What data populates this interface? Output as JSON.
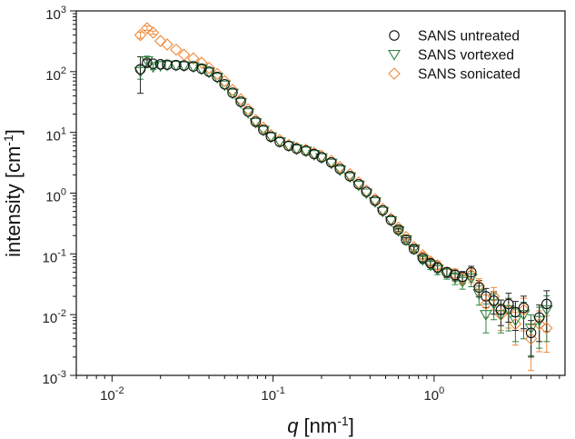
{
  "chart_data": {
    "type": "scatter",
    "xscale": "log",
    "yscale": "log",
    "xlim": [
      0.006,
      6.5
    ],
    "ylim": [
      0.001,
      1000
    ],
    "x_ticks": [
      {
        "value": 0.01,
        "base": "10",
        "exp": "-2"
      },
      {
        "value": 0.1,
        "base": "10",
        "exp": "-1"
      },
      {
        "value": 1,
        "base": "10",
        "exp": "0"
      }
    ],
    "y_ticks": [
      {
        "value": 0.001,
        "base": "10",
        "exp": "-3"
      },
      {
        "value": 0.01,
        "base": "10",
        "exp": "-2"
      },
      {
        "value": 0.1,
        "base": "10",
        "exp": "-1"
      },
      {
        "value": 1,
        "base": "10",
        "exp": "0"
      },
      {
        "value": 10,
        "base": "10",
        "exp": "1"
      },
      {
        "value": 100,
        "base": "10",
        "exp": "2"
      },
      {
        "value": 1000,
        "base": "10",
        "exp": "3"
      }
    ],
    "xlabel": {
      "italic": "q",
      "rest": " [nm",
      "sup": "-1",
      "tail": "]"
    },
    "ylabel": {
      "text": "intensity [cm",
      "sup": "-1",
      "tail": "]"
    },
    "legend_position": "top-right",
    "grid": false,
    "x": [
      0.015,
      0.0165,
      0.018,
      0.02,
      0.022,
      0.025,
      0.028,
      0.032,
      0.036,
      0.04,
      0.045,
      0.05,
      0.056,
      0.063,
      0.07,
      0.078,
      0.087,
      0.097,
      0.11,
      0.125,
      0.14,
      0.16,
      0.18,
      0.2,
      0.23,
      0.26,
      0.3,
      0.34,
      0.38,
      0.43,
      0.48,
      0.54,
      0.6,
      0.67,
      0.75,
      0.85,
      0.95,
      1.05,
      1.2,
      1.35,
      1.5,
      1.7,
      1.9,
      2.1,
      2.35,
      2.6,
      2.9,
      3.2,
      3.6,
      4.0,
      4.5,
      5.0
    ],
    "series": [
      {
        "name": "SANS untreated",
        "marker": "circle",
        "color": "#111111",
        "errcolor": "#222222",
        "values": [
          110,
          140,
          135,
          132,
          130,
          128,
          126,
          122,
          112,
          100,
          82,
          62,
          45,
          32,
          22,
          15,
          11,
          8.5,
          7,
          6,
          5.4,
          5,
          4.4,
          3.9,
          3.2,
          2.5,
          1.9,
          1.4,
          1.05,
          0.75,
          0.52,
          0.36,
          0.25,
          0.17,
          0.12,
          0.085,
          0.07,
          0.06,
          0.05,
          0.045,
          0.042,
          0.05,
          0.028,
          0.02,
          0.017,
          0.012,
          0.015,
          0.011,
          0.013,
          0.005,
          0.009,
          0.015
        ],
        "err": [
          0.6,
          0.12,
          0.05,
          0.03,
          0.02,
          0.015,
          0.012,
          0.01,
          0.01,
          0.01,
          0.01,
          0.01,
          0.01,
          0.01,
          0.01,
          0.01,
          0.01,
          0.01,
          0.01,
          0.01,
          0.01,
          0.01,
          0.01,
          0.01,
          0.01,
          0.01,
          0.01,
          0.01,
          0.02,
          0.02,
          0.03,
          0.05,
          0.06,
          0.08,
          0.1,
          0.12,
          0.14,
          0.16,
          0.18,
          0.2,
          0.22,
          0.25,
          0.3,
          0.35,
          0.4,
          0.45,
          0.5,
          0.5,
          0.55,
          0.6,
          0.6,
          0.65
        ]
      },
      {
        "name": "SANS vortexed",
        "marker": "triangle-down",
        "color": "#2e8540",
        "errcolor": "#2e8540",
        "values": [
          100,
          150,
          120,
          125,
          128,
          126,
          124,
          120,
          110,
          98,
          80,
          60,
          44,
          31,
          21,
          14.5,
          10.8,
          8.4,
          7,
          6,
          5.3,
          4.9,
          4.3,
          3.8,
          3.1,
          2.4,
          1.85,
          1.35,
          1.0,
          0.72,
          0.5,
          0.35,
          0.24,
          0.17,
          0.12,
          0.08,
          0.065,
          0.055,
          0.048,
          0.04,
          0.035,
          0.04,
          0.022,
          0.01,
          0.015,
          0.01,
          0.012,
          0.008,
          0.01,
          0.006,
          0.008,
          0.012
        ],
        "err": [
          0.25,
          0.2,
          0.1,
          0.04,
          0.03,
          0.02,
          0.015,
          0.012,
          0.01,
          0.01,
          0.01,
          0.01,
          0.01,
          0.01,
          0.01,
          0.01,
          0.01,
          0.01,
          0.01,
          0.01,
          0.01,
          0.01,
          0.01,
          0.01,
          0.01,
          0.01,
          0.01,
          0.01,
          0.02,
          0.02,
          0.03,
          0.05,
          0.07,
          0.09,
          0.11,
          0.13,
          0.15,
          0.17,
          0.2,
          0.22,
          0.25,
          0.28,
          0.35,
          0.5,
          0.45,
          0.5,
          0.55,
          0.55,
          0.6,
          0.65,
          0.65,
          0.7
        ]
      },
      {
        "name": "SANS sonicated",
        "marker": "diamond",
        "color": "#f08a3a",
        "errcolor": "#f08a3a",
        "values": [
          400,
          520,
          440,
          320,
          280,
          230,
          190,
          165,
          140,
          115,
          92,
          70,
          50,
          35,
          24,
          16,
          12,
          9,
          7.5,
          6.2,
          5.6,
          5.2,
          4.6,
          4.1,
          3.4,
          2.7,
          2.05,
          1.5,
          1.1,
          0.8,
          0.55,
          0.38,
          0.27,
          0.19,
          0.13,
          0.095,
          0.075,
          0.065,
          0.05,
          0.047,
          0.04,
          0.045,
          0.03,
          0.015,
          0.02,
          0.01,
          0.012,
          0.007,
          0.012,
          0.004,
          0.007,
          0.006
        ],
        "err": [
          0.12,
          0.08,
          0.06,
          0.04,
          0.03,
          0.02,
          0.015,
          0.012,
          0.01,
          0.01,
          0.01,
          0.01,
          0.01,
          0.01,
          0.01,
          0.01,
          0.01,
          0.01,
          0.01,
          0.01,
          0.01,
          0.01,
          0.01,
          0.01,
          0.01,
          0.01,
          0.01,
          0.01,
          0.02,
          0.02,
          0.03,
          0.05,
          0.06,
          0.08,
          0.1,
          0.12,
          0.14,
          0.16,
          0.18,
          0.2,
          0.22,
          0.25,
          0.3,
          0.4,
          0.4,
          0.45,
          0.5,
          0.55,
          0.55,
          0.7,
          0.65,
          0.6
        ]
      }
    ]
  }
}
